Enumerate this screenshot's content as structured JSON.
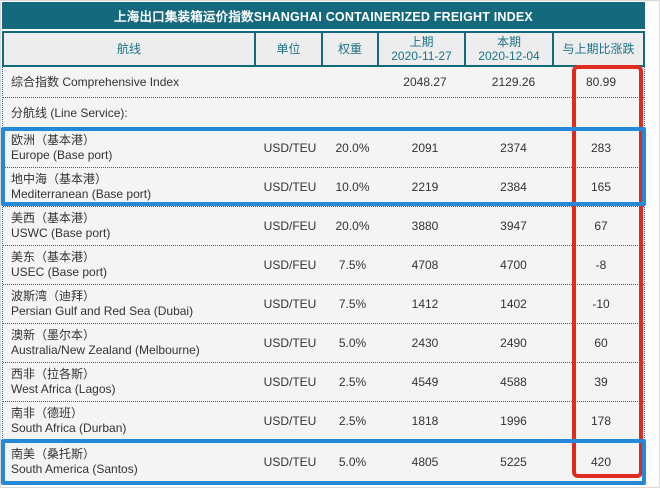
{
  "page": {
    "title": "上海出口集装箱运价指数SHANGHAI CONTAINERIZED FREIGHT INDEX"
  },
  "table": {
    "columns": [
      {
        "label": "航线"
      },
      {
        "label": "单位"
      },
      {
        "label": "权重"
      },
      {
        "label": "上期",
        "sub": "2020-11-27"
      },
      {
        "label": "本期",
        "sub": "2020-12-04"
      },
      {
        "label": "与上期比涨跌"
      }
    ],
    "rows": [
      {
        "kind": "index",
        "label": "综合指数 Comprehensive Index",
        "unit": "",
        "weight": "",
        "prev": "2048.27",
        "curr": "2129.26",
        "change": "80.99"
      },
      {
        "kind": "section",
        "label": "分航线 (Line Service):"
      },
      {
        "kind": "data",
        "cn": "欧洲（基本港）",
        "en": "Europe (Base port)",
        "unit": "USD/TEU",
        "weight": "20.0%",
        "prev": "2091",
        "curr": "2374",
        "change": "283"
      },
      {
        "kind": "data",
        "cn": "地中海（基本港）",
        "en": "Mediterranean (Base port)",
        "unit": "USD/TEU",
        "weight": "10.0%",
        "prev": "2219",
        "curr": "2384",
        "change": "165"
      },
      {
        "kind": "data",
        "cn": "美西（基本港）",
        "en": "USWC (Base port)",
        "unit": "USD/FEU",
        "weight": "20.0%",
        "prev": "3880",
        "curr": "3947",
        "change": "67"
      },
      {
        "kind": "data",
        "cn": "美东（基本港）",
        "en": "USEC (Base port)",
        "unit": "USD/FEU",
        "weight": "7.5%",
        "prev": "4708",
        "curr": "4700",
        "change": "-8"
      },
      {
        "kind": "data",
        "cn": "波斯湾（迪拜）",
        "en": "Persian Gulf and Red Sea (Dubai)",
        "unit": "USD/TEU",
        "weight": "7.5%",
        "prev": "1412",
        "curr": "1402",
        "change": "-10"
      },
      {
        "kind": "data",
        "cn": "澳新（墨尔本）",
        "en": "Australia/New Zealand (Melbourne)",
        "unit": "USD/TEU",
        "weight": "5.0%",
        "prev": "2430",
        "curr": "2490",
        "change": "60"
      },
      {
        "kind": "data",
        "cn": "西非（拉各斯）",
        "en": "West Africa (Lagos)",
        "unit": "USD/TEU",
        "weight": "2.5%",
        "prev": "4549",
        "curr": "4588",
        "change": "39"
      },
      {
        "kind": "data",
        "cn": "南非（德班）",
        "en": "South Africa (Durban)",
        "unit": "USD/TEU",
        "weight": "2.5%",
        "prev": "1818",
        "curr": "1996",
        "change": "178"
      },
      {
        "kind": "data",
        "cn": "南美（桑托斯）",
        "en": "South America (Santos)",
        "unit": "USD/TEU",
        "weight": "5.0%",
        "prev": "4805",
        "curr": "5225",
        "change": "420"
      }
    ]
  },
  "colors": {
    "title_bar": "#15697d",
    "header_text": "#1b7288",
    "highlight_red": "#dd2c1e",
    "highlight_blue": "#2589d8"
  },
  "chart_data": {
    "type": "table",
    "title": "上海出口集装箱运价指数SHANGHAI CONTAINERIZED FREIGHT INDEX",
    "columns": [
      "航线",
      "单位",
      "权重",
      "上期 2020-11-27",
      "本期 2020-12-04",
      "与上期比涨跌"
    ],
    "rows": [
      [
        "综合指数 Comprehensive Index",
        "",
        "",
        2048.27,
        2129.26,
        80.99
      ],
      [
        "分航线 (Line Service):",
        "",
        "",
        null,
        null,
        null
      ],
      [
        "欧洲（基本港） Europe (Base port)",
        "USD/TEU",
        "20.0%",
        2091,
        2374,
        283
      ],
      [
        "地中海（基本港） Mediterranean (Base port)",
        "USD/TEU",
        "10.0%",
        2219,
        2384,
        165
      ],
      [
        "美西（基本港） USWC (Base port)",
        "USD/FEU",
        "20.0%",
        3880,
        3947,
        67
      ],
      [
        "美东（基本港） USEC (Base port)",
        "USD/FEU",
        "7.5%",
        4708,
        4700,
        -8
      ],
      [
        "波斯湾（迪拜） Persian Gulf and Red Sea (Dubai)",
        "USD/TEU",
        "7.5%",
        1412,
        1402,
        -10
      ],
      [
        "澳新（墨尔本） Australia/New Zealand (Melbourne)",
        "USD/TEU",
        "5.0%",
        2430,
        2490,
        60
      ],
      [
        "西非（拉各斯） West Africa (Lagos)",
        "USD/TEU",
        "2.5%",
        4549,
        4588,
        39
      ],
      [
        "南非（德班） South Africa (Durban)",
        "USD/TEU",
        "2.5%",
        1818,
        1996,
        178
      ],
      [
        "南美（桑托斯） South America (Santos)",
        "USD/TEU",
        "5.0%",
        4805,
        5225,
        420
      ]
    ],
    "annotations": [
      {
        "shape": "rect",
        "color": "#dd2c1e",
        "covers": "与上期比涨跌 column values"
      },
      {
        "shape": "rect",
        "color": "#2589d8",
        "covers": "欧洲 and 地中海 rows"
      },
      {
        "shape": "rect",
        "color": "#2589d8",
        "covers": "南美 (桑托斯) row"
      }
    ]
  }
}
